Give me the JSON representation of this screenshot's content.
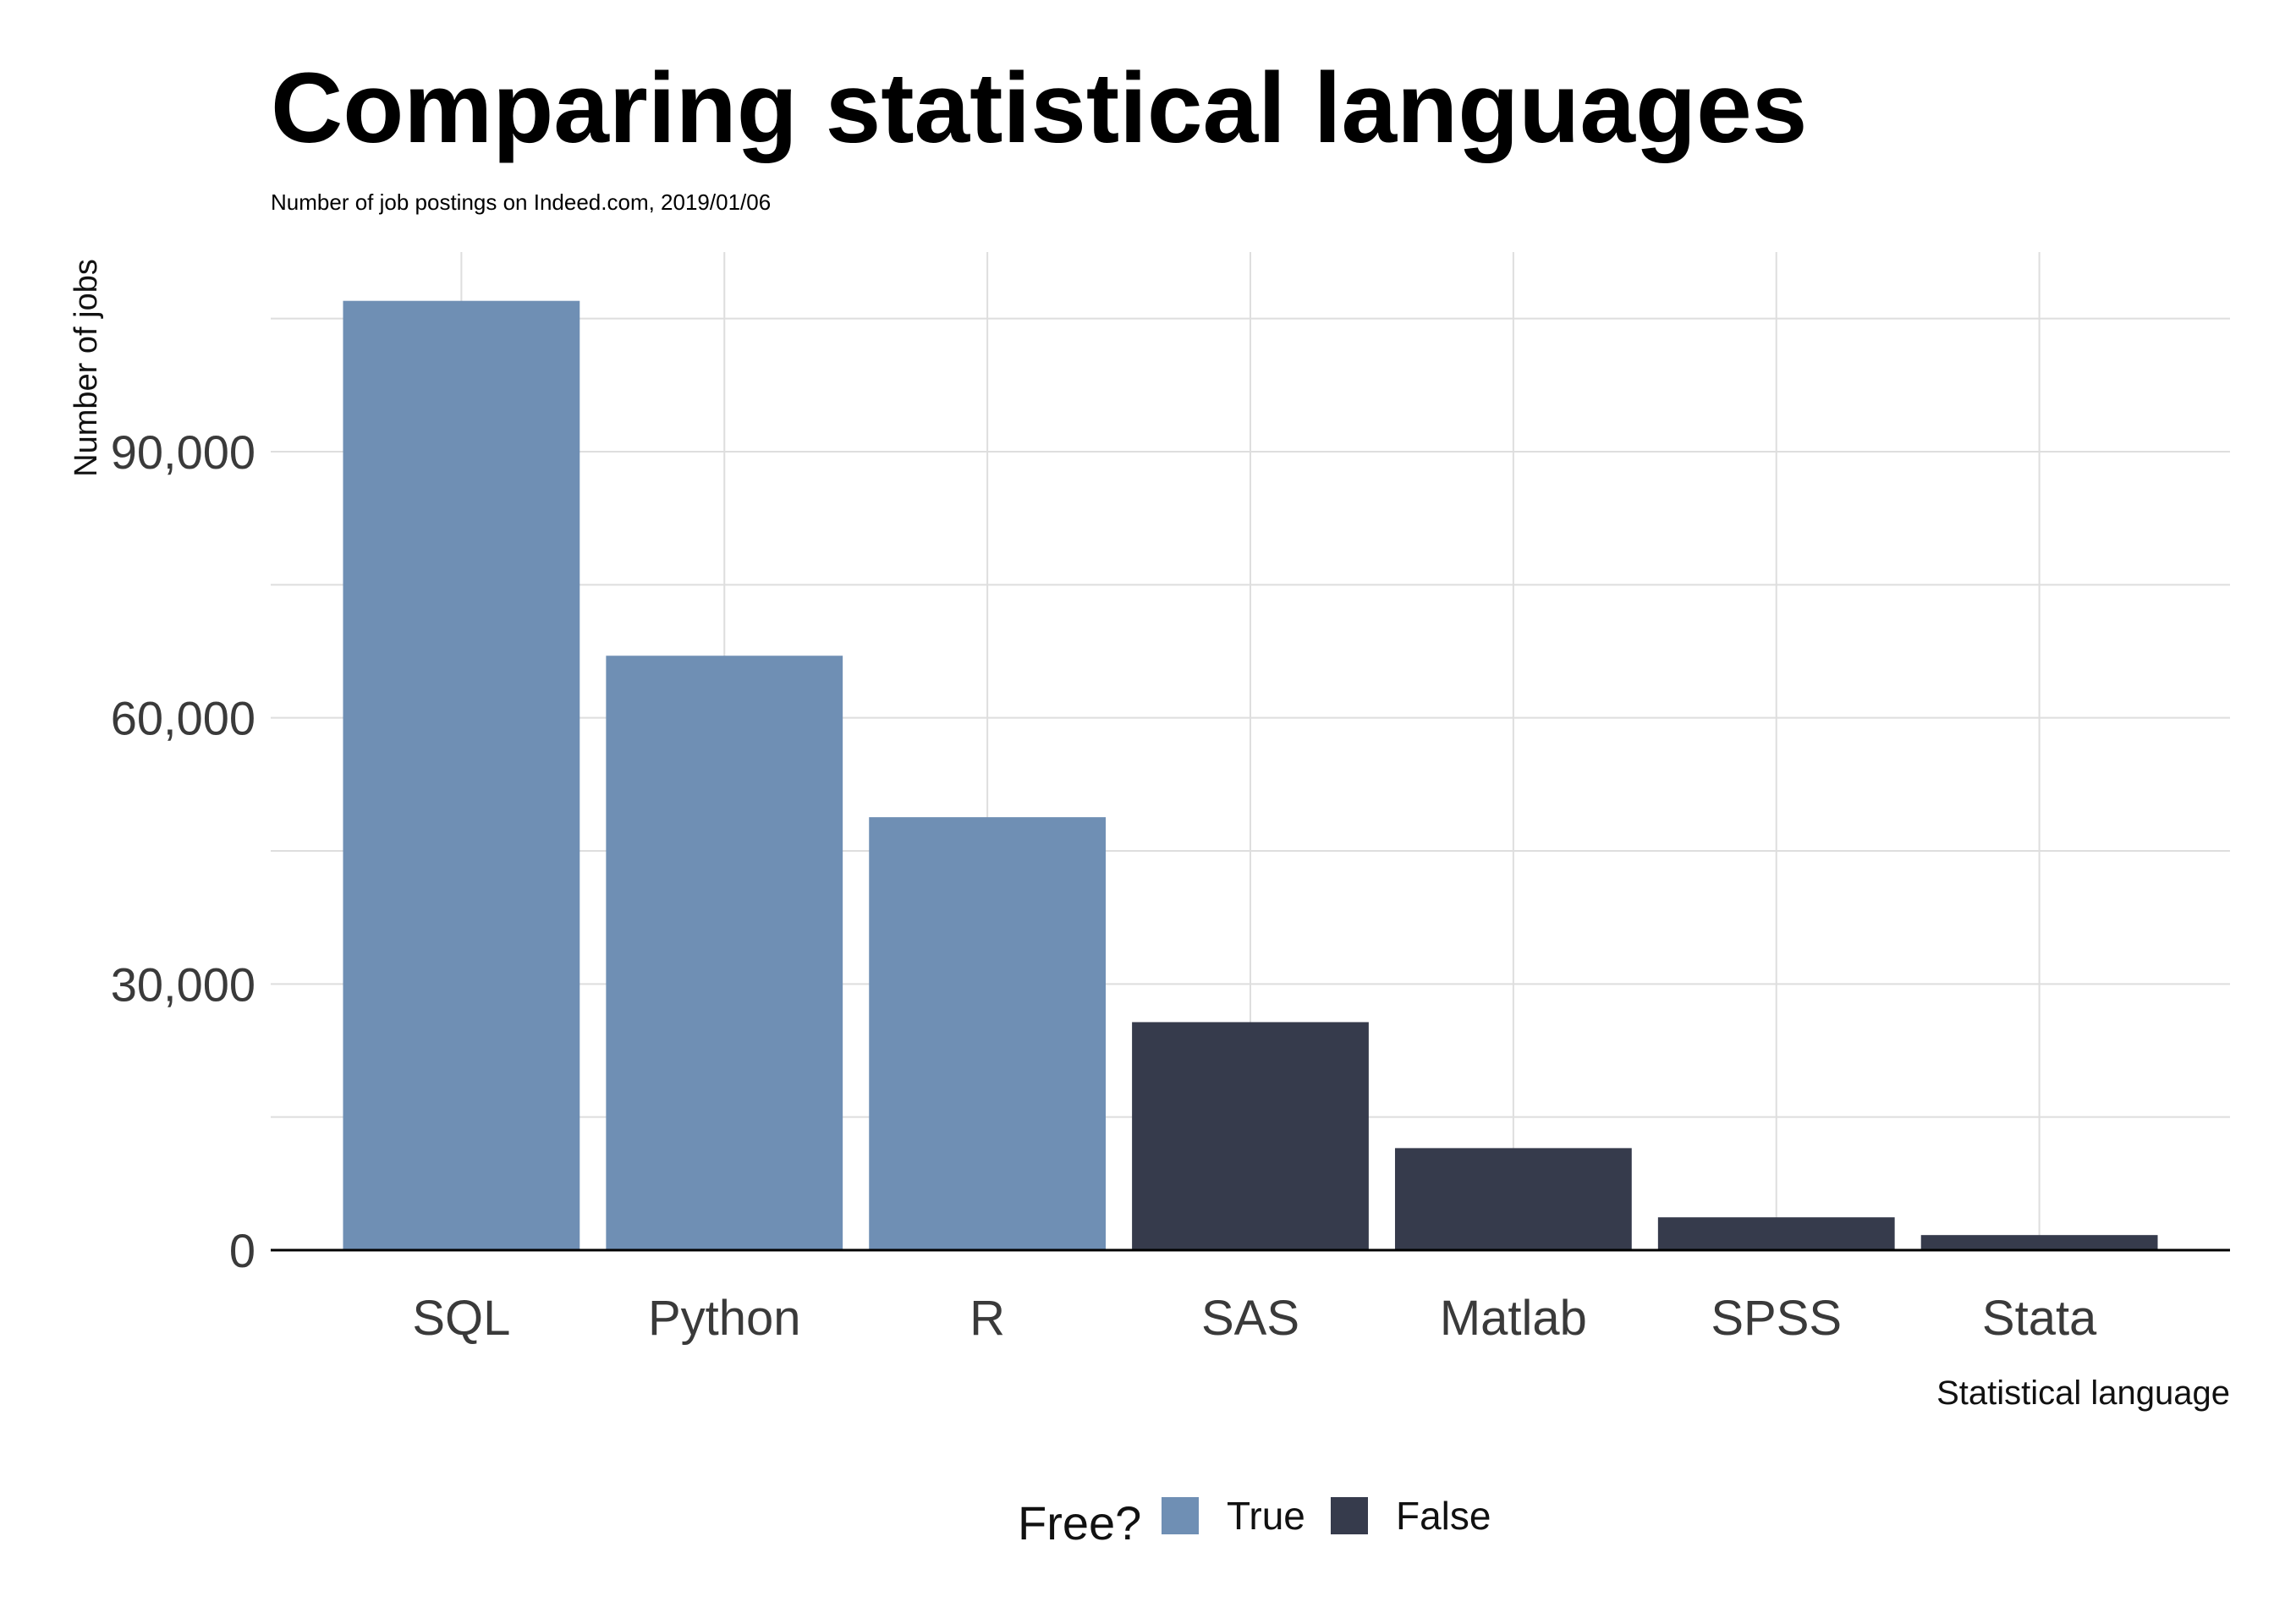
{
  "chart_data": {
    "type": "bar",
    "title": "Comparing statistical languages",
    "subtitle": "Number of job postings on Indeed.com, 2019/01/06",
    "xlabel": "Statistical language",
    "ylabel": "Number of jobs",
    "categories": [
      "SQL",
      "Python",
      "R",
      "SAS",
      "Matlab",
      "SPSS",
      "Stata"
    ],
    "values": [
      107000,
      67000,
      48800,
      25700,
      11500,
      3700,
      1700
    ],
    "free": [
      "True",
      "True",
      "True",
      "False",
      "False",
      "False",
      "False"
    ],
    "ylim": [
      0,
      112500
    ],
    "yticks": [
      0,
      30000,
      60000,
      90000
    ],
    "ytick_labels": [
      "0",
      "30,000",
      "60,000",
      "90,000"
    ],
    "grid": true,
    "legend": {
      "title": "Free?",
      "position": "bottom",
      "entries": [
        {
          "label": "True",
          "color": "#6f8fb4"
        },
        {
          "label": "False",
          "color": "#363b4c"
        }
      ]
    }
  }
}
